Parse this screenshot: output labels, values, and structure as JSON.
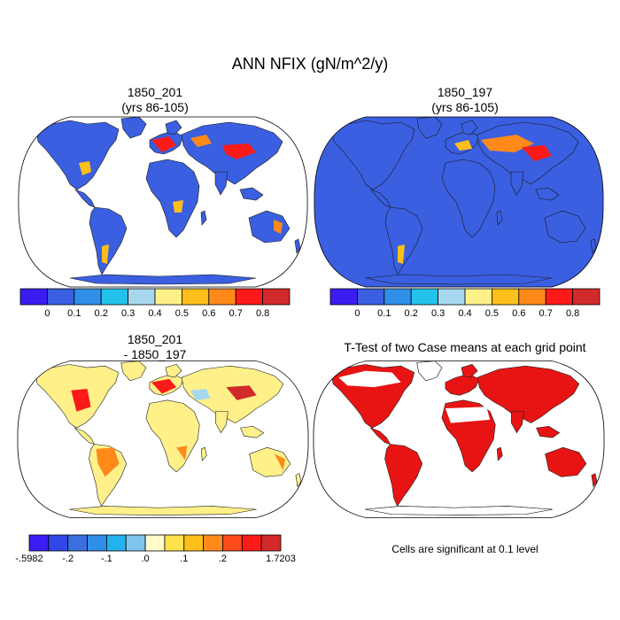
{
  "title": "ANN NFIX (gN/m^2/y)",
  "panels": [
    {
      "title_line1": "1850_201",
      "title_line2": "(yrs 86-105)"
    },
    {
      "title_line1": "1850_197",
      "title_line2": "(yrs 86-105)"
    },
    {
      "title_line1": "1850_201",
      "title_line2": "- 1850_197"
    },
    {
      "title_line1": "T-Test of two Case means at each grid point",
      "title_line2": ""
    }
  ],
  "colorbar_top": {
    "colors": [
      "#3b1cf2",
      "#3a5fe0",
      "#2f8fe8",
      "#22c2ec",
      "#a7d8f0",
      "#fff08a",
      "#ffbf1a",
      "#ff8a1a",
      "#ff1a1a",
      "#d22a2a"
    ],
    "labels": [
      "0",
      "0.1",
      "0.2",
      "0.3",
      "0.4",
      "0.5",
      "0.6",
      "0.7",
      "0.8"
    ]
  },
  "colorbar_diff": {
    "colors": [
      "#3b1cf2",
      "#3148e8",
      "#3a6fe0",
      "#2f8fe8",
      "#22b2ec",
      "#7ec4ec",
      "#fffbcc",
      "#ffe14a",
      "#ffbf1a",
      "#ff8a1a",
      "#ff4a1a",
      "#ff1a1a",
      "#d22a2a"
    ],
    "labels": [
      "-.5982",
      "-.2",
      "-.1",
      ".0",
      ".1",
      ".2",
      "1.7203"
    ]
  },
  "note": "Cells are significant at 0.1 level"
}
